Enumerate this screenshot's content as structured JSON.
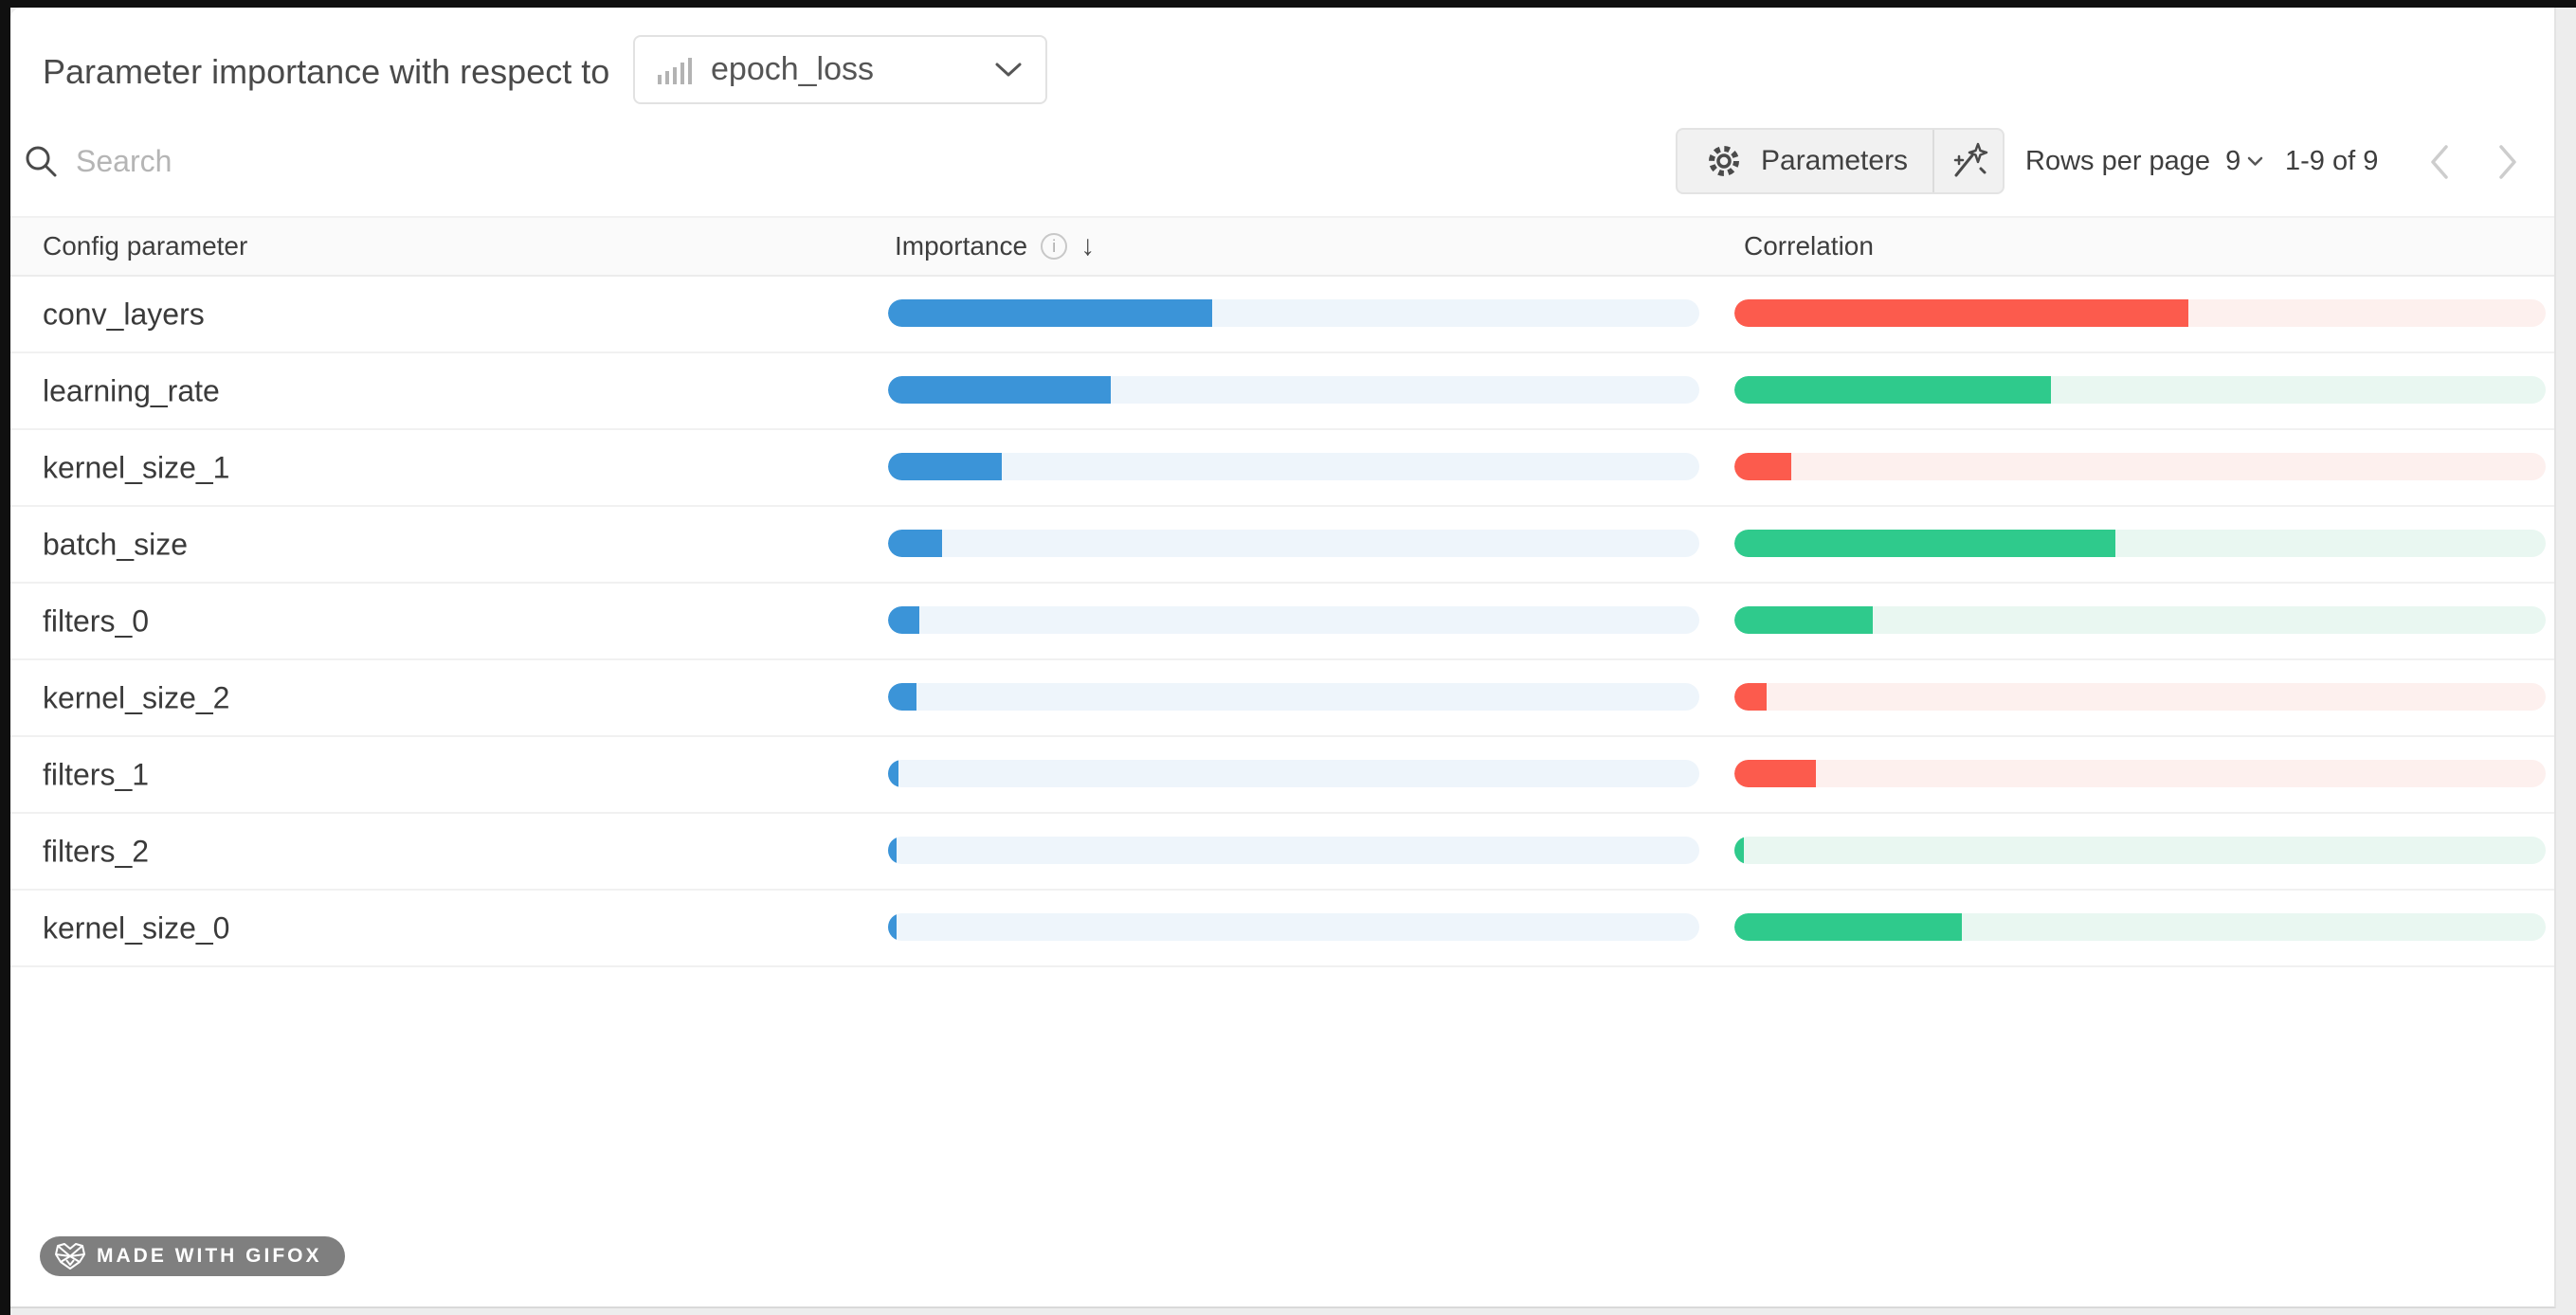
{
  "panel": {
    "title": "Parameter importance with respect to",
    "metric_dropdown": {
      "value": "epoch_loss",
      "icon": "bar-chart-icon"
    },
    "toolbar": {
      "search_placeholder": "Search",
      "parameters_label": "Parameters",
      "rows_per_page_label": "Rows per page",
      "rows_per_page_value": "9",
      "page_range": "1-9 of 9"
    },
    "table": {
      "col_parameter": "Config parameter",
      "col_importance": "Importance",
      "col_correlation": "Correlation",
      "rows": [
        {
          "name": "conv_layers",
          "importance": 0.4,
          "correlation": -0.56
        },
        {
          "name": "learning_rate",
          "importance": 0.275,
          "correlation": 0.39
        },
        {
          "name": "kernel_size_1",
          "importance": 0.14,
          "correlation": -0.07
        },
        {
          "name": "batch_size",
          "importance": 0.067,
          "correlation": 0.47
        },
        {
          "name": "filters_0",
          "importance": 0.039,
          "correlation": 0.17
        },
        {
          "name": "kernel_size_2",
          "importance": 0.035,
          "correlation": -0.04
        },
        {
          "name": "filters_1",
          "importance": 0.013,
          "correlation": -0.1
        },
        {
          "name": "filters_2",
          "importance": 0.011,
          "correlation": 0.012
        },
        {
          "name": "kernel_size_0",
          "importance": 0.01,
          "correlation": 0.28
        }
      ]
    },
    "badge": {
      "label": "MADE WITH GIFOX"
    },
    "info_glyph": "i",
    "sort_glyph": "↓"
  },
  "colors": {
    "importance_fill": "#3b94d8",
    "importance_track": "#eef5fb",
    "positive_fill": "#2fca8c",
    "positive_track": "#e9f7f1",
    "negative_fill": "#fc5b4d",
    "negative_track": "#fdf0ee"
  }
}
